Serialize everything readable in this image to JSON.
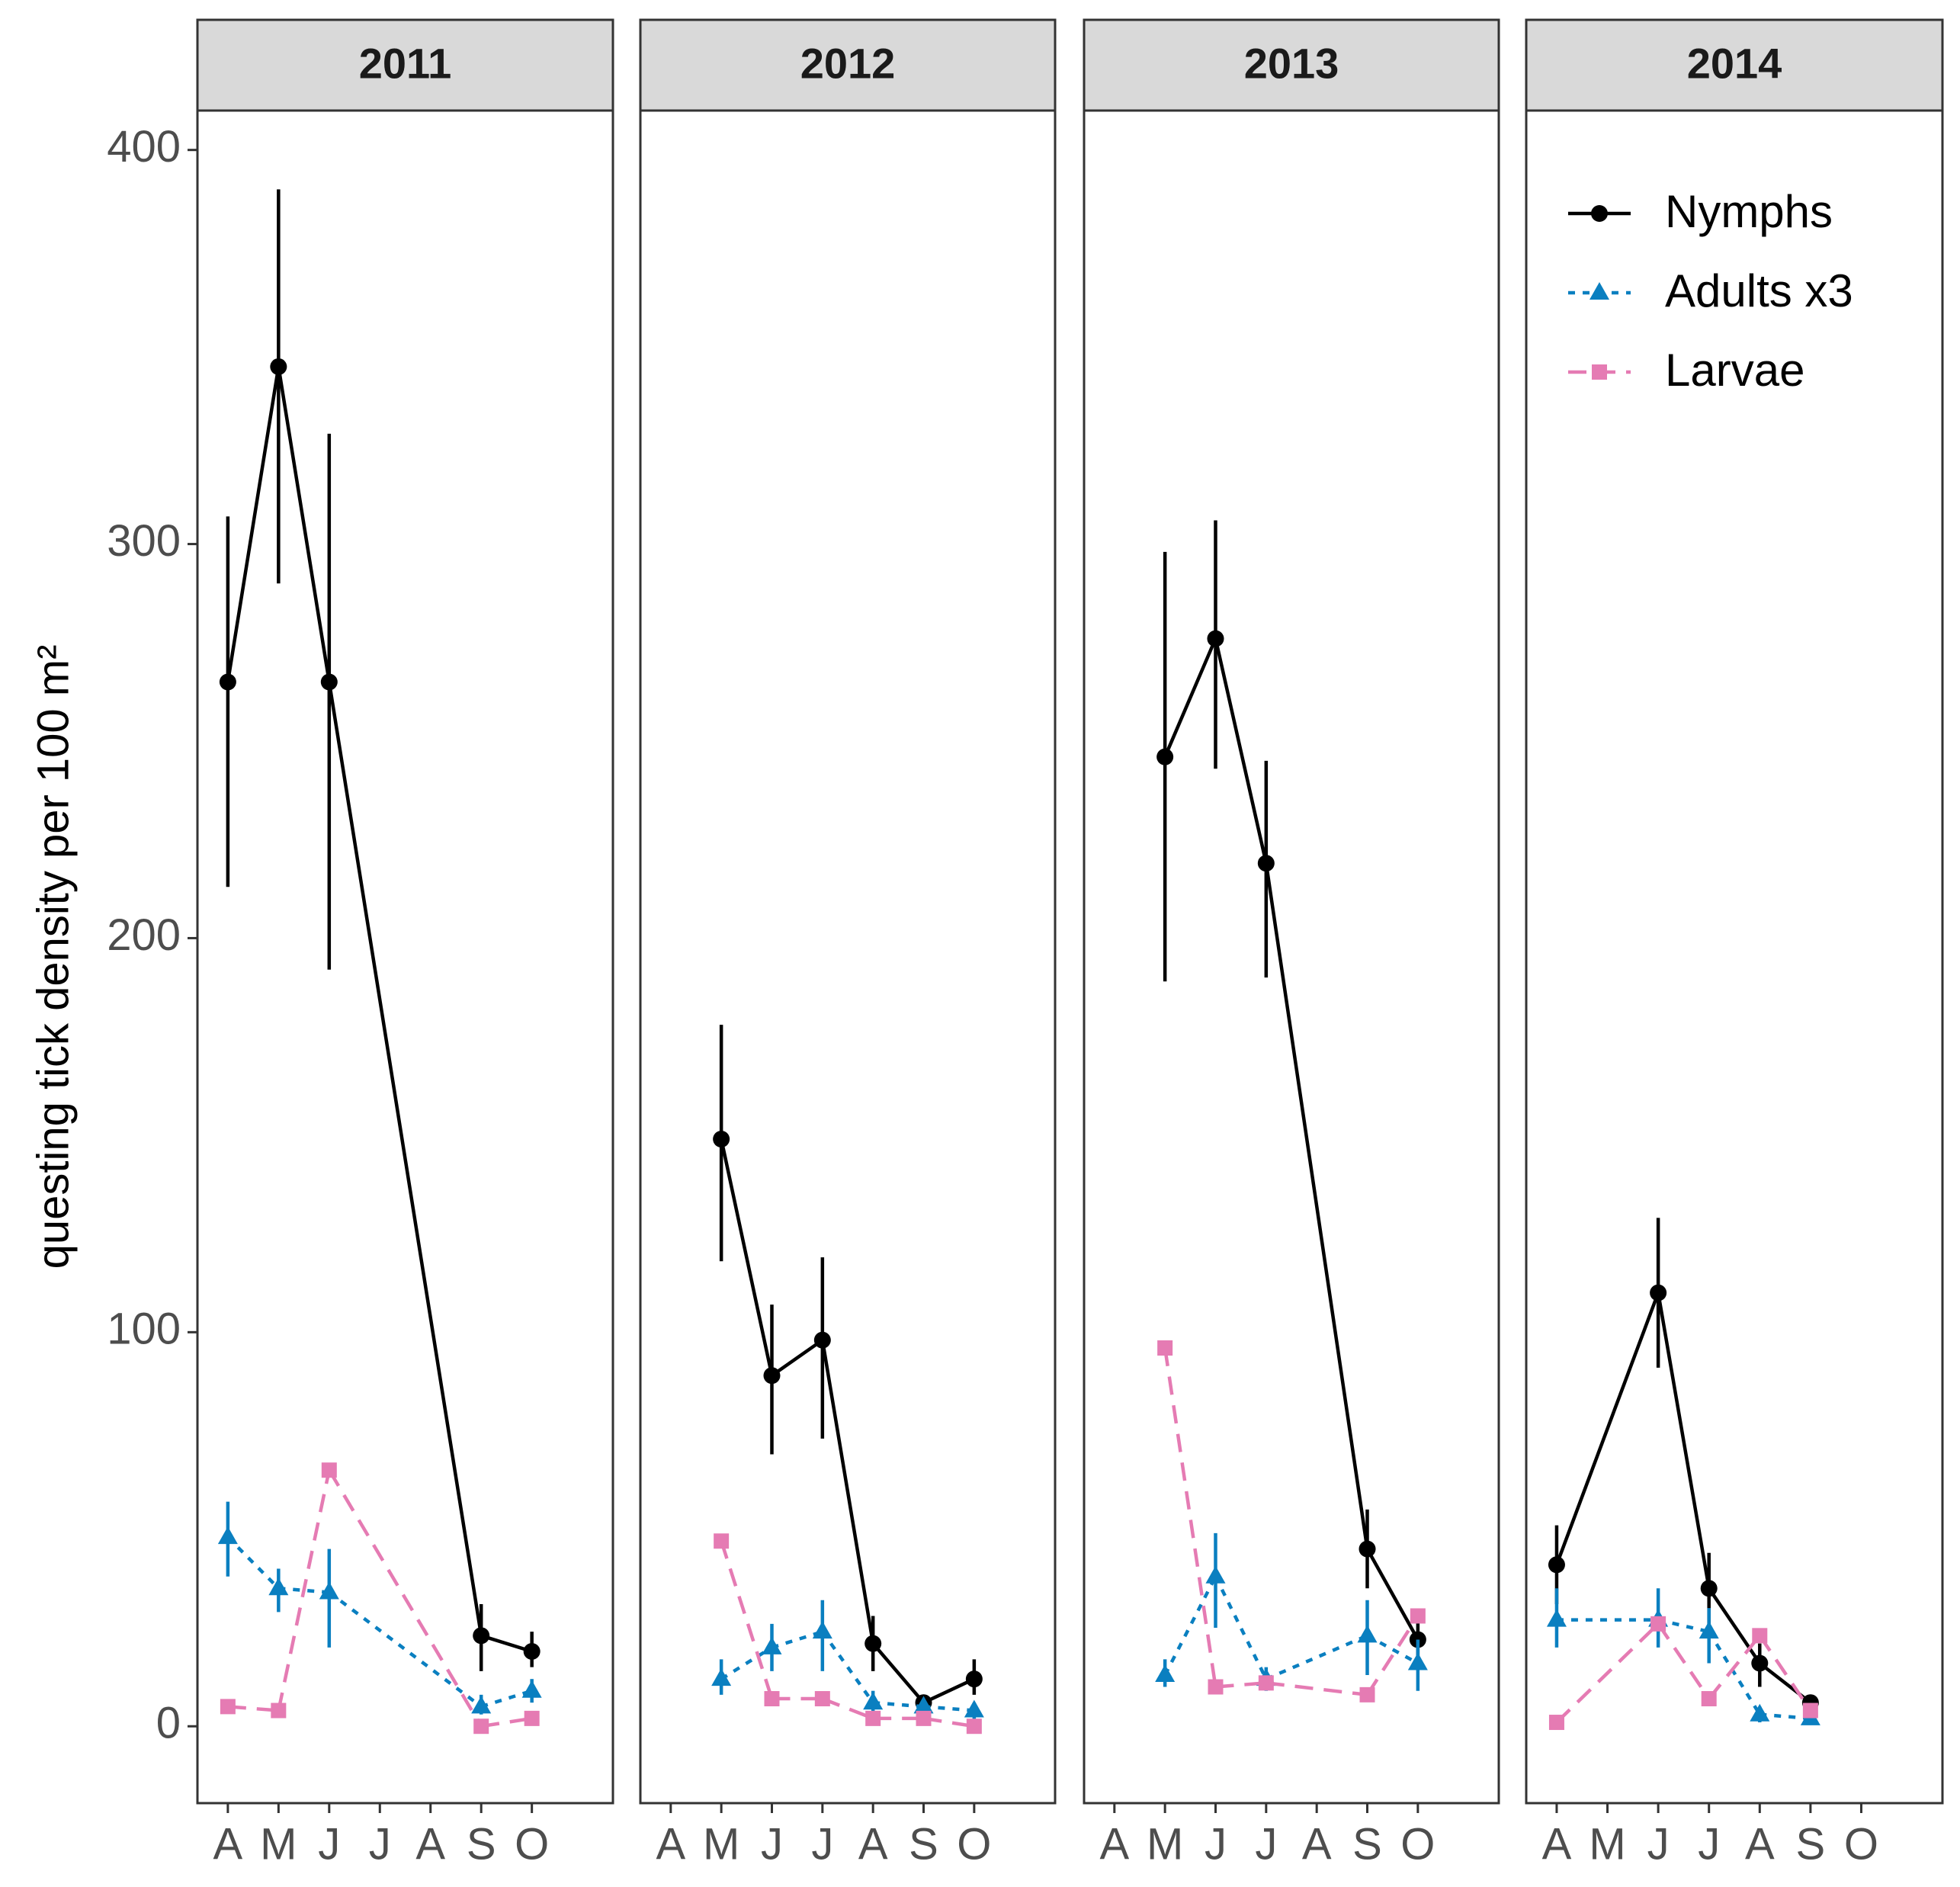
{
  "chart_data": [
    {
      "type": "line",
      "title": "2011",
      "y_label": "questing tick density per 100 m²",
      "categories": [
        "A",
        "M",
        "J",
        "J",
        "A",
        "S",
        "O"
      ],
      "ylim": [
        -19.5,
        410
      ],
      "yticks": [
        0,
        100,
        200,
        300,
        400
      ],
      "series": [
        {
          "color": "#000000",
          "marker": "circle",
          "dash": "solid",
          "values": [
            265,
            345,
            265,
            null,
            null,
            23,
            19
          ],
          "lower": [
            213,
            290,
            192,
            null,
            null,
            14,
            15
          ],
          "upper": [
            307,
            390,
            328,
            null,
            null,
            31,
            24
          ]
        },
        {
          "color": "#0a7fc0",
          "marker": "triangle",
          "dash": "dotted",
          "values": [
            48,
            35,
            34,
            null,
            null,
            5,
            9
          ],
          "lower": [
            38,
            29,
            20,
            null,
            null,
            3,
            6
          ],
          "upper": [
            57,
            40,
            45,
            null,
            null,
            8,
            12
          ]
        },
        {
          "color": "#e57bb3",
          "marker": "square",
          "dash": "dashed",
          "values": [
            5,
            4,
            65,
            null,
            null,
            0,
            2
          ]
        }
      ]
    },
    {
      "type": "line",
      "title": "2012",
      "categories": [
        "A",
        "M",
        "J",
        "J",
        "A",
        "S",
        "O"
      ],
      "ylim": [
        -19.5,
        410
      ],
      "series": [
        {
          "color": "#000000",
          "marker": "circle",
          "dash": "solid",
          "values": [
            null,
            149,
            89,
            98,
            21,
            6,
            12
          ],
          "lower": [
            null,
            118,
            69,
            73,
            14,
            4,
            8
          ],
          "upper": [
            null,
            178,
            107,
            119,
            28,
            8,
            17
          ]
        },
        {
          "color": "#0a7fc0",
          "marker": "triangle",
          "dash": "dotted",
          "values": [
            null,
            12,
            20,
            24,
            6,
            5,
            4
          ],
          "lower": [
            null,
            8,
            14,
            14,
            3,
            3,
            1
          ],
          "upper": [
            null,
            17,
            26,
            32,
            9,
            7,
            6
          ]
        },
        {
          "color": "#e57bb3",
          "marker": "square",
          "dash": "dashed",
          "values": [
            null,
            47,
            7,
            7,
            2,
            2,
            0
          ]
        }
      ]
    },
    {
      "type": "line",
      "title": "2013",
      "categories": [
        "A",
        "M",
        "J",
        "J",
        "A",
        "S",
        "O"
      ],
      "ylim": [
        -19.5,
        410
      ],
      "series": [
        {
          "color": "#000000",
          "marker": "circle",
          "dash": "solid",
          "values": [
            null,
            246,
            276,
            219,
            null,
            45,
            22
          ],
          "lower": [
            null,
            189,
            243,
            190,
            null,
            35,
            16
          ],
          "upper": [
            null,
            298,
            306,
            245,
            null,
            55,
            28
          ]
        },
        {
          "color": "#0a7fc0",
          "marker": "triangle",
          "dash": "dotted",
          "values": [
            null,
            13,
            38,
            12,
            null,
            23,
            16
          ],
          "lower": [
            null,
            10,
            25,
            9,
            null,
            13,
            9
          ],
          "upper": [
            null,
            17,
            49,
            15,
            null,
            32,
            22
          ]
        },
        {
          "color": "#e57bb3",
          "marker": "square",
          "dash": "dashed",
          "values": [
            null,
            96,
            10,
            11,
            null,
            8,
            28
          ]
        }
      ]
    },
    {
      "type": "line",
      "title": "2014",
      "legend": "top-right",
      "categories": [
        "A",
        "M",
        "J",
        "J",
        "A",
        "S",
        "O"
      ],
      "ylim": [
        -19.5,
        410
      ],
      "series": [
        {
          "name": "Nymphs",
          "color": "#000000",
          "marker": "circle",
          "dash": "solid",
          "values": [
            41,
            null,
            110,
            35,
            16,
            6,
            null
          ],
          "lower": [
            31,
            null,
            91,
            24,
            10,
            4,
            null
          ],
          "upper": [
            51,
            null,
            129,
            44,
            21,
            8,
            null
          ]
        },
        {
          "name": "Adults x3",
          "color": "#0a7fc0",
          "marker": "triangle",
          "dash": "dotted",
          "values": [
            27,
            null,
            27,
            24,
            3,
            2,
            null
          ],
          "lower": [
            20,
            null,
            20,
            16,
            1,
            1,
            null
          ],
          "upper": [
            35,
            null,
            35,
            30,
            5,
            3,
            null
          ]
        },
        {
          "name": "Larvae",
          "color": "#e57bb3",
          "marker": "square",
          "dash": "dashed",
          "values": [
            1,
            null,
            26,
            7,
            23,
            4,
            null
          ]
        }
      ]
    }
  ]
}
